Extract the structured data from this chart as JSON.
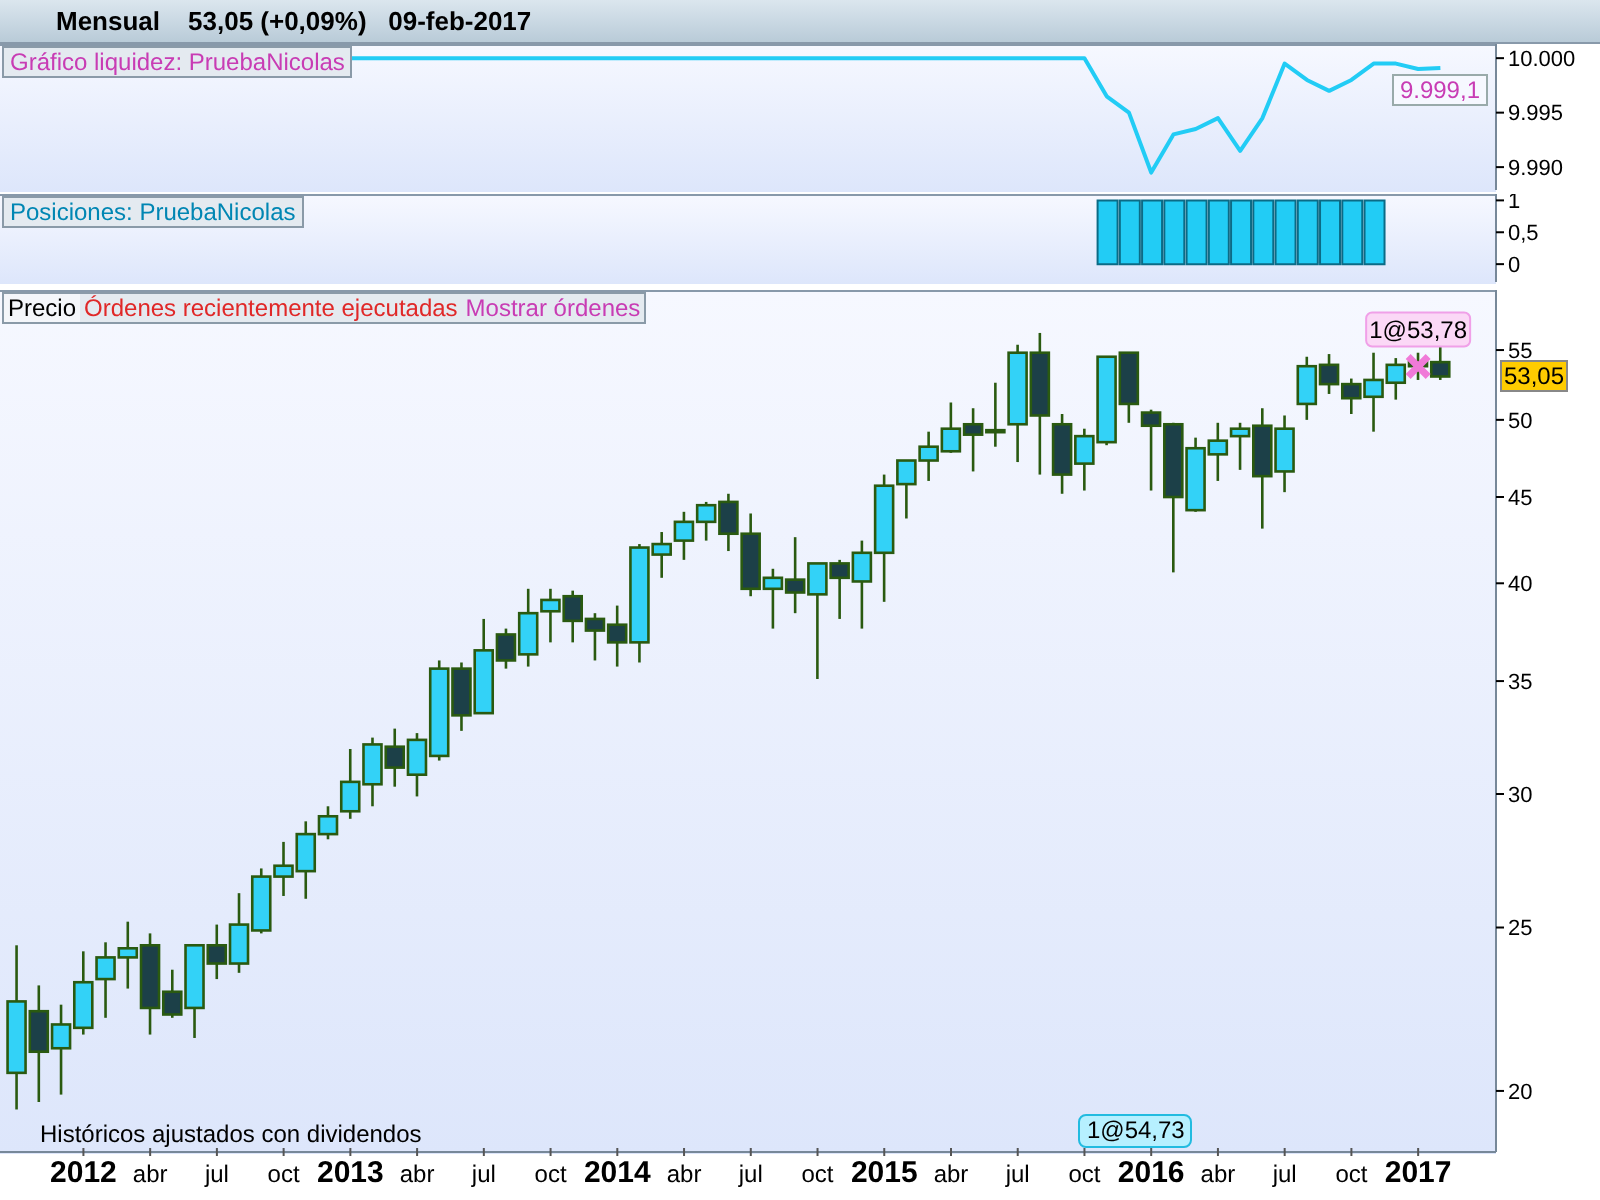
{
  "chart_data": [
    {
      "type": "line",
      "title": "Mensual",
      "subtitle": "53,05 (+0,09%)   09-feb-2017",
      "tick_labels": "y",
      "categories": [
        null,
        null,
        null,
        null,
        null,
        null,
        null,
        null,
        null,
        null,
        null,
        null,
        null,
        null,
        null,
        null,
        null,
        null,
        null,
        null,
        null,
        null,
        null,
        null,
        null,
        null,
        null,
        null,
        null,
        null,
        null,
        null,
        null,
        null,
        null,
        null,
        null,
        null,
        null,
        null,
        null,
        null,
        null,
        null,
        null,
        null,
        null,
        null,
        null,
        null,
        null,
        null,
        null,
        null,
        null,
        null,
        null,
        null,
        null,
        null,
        null,
        null,
        null,
        null,
        null
      ],
      "series": [
        {
          "color": "#22ccf5",
          "values": [
            null,
            null,
            null,
            null,
            null,
            null,
            null,
            null,
            null,
            null,
            null,
            null,
            null,
            null,
            null,
            10000,
            10000,
            10000,
            10000,
            10000,
            10000,
            10000,
            10000,
            10000,
            10000,
            10000,
            10000,
            10000,
            10000,
            10000,
            10000,
            10000,
            10000,
            10000,
            10000,
            10000,
            10000,
            10000,
            10000,
            10000,
            10000,
            10000,
            10000,
            10000,
            10000,
            10000,
            10000,
            10000,
            10000,
            9996.5,
            9995,
            9989.5,
            9993,
            9993.5,
            9994.5,
            9991.5,
            9994.5,
            9999.5,
            9998,
            9997,
            9998,
            9999.5,
            9999.5,
            9999,
            9999.1
          ]
        }
      ],
      "ylim": [
        9987.9,
        10001.3
      ],
      "yticks": [
        {
          "value": 9990,
          "label": "9.990"
        },
        {
          "value": 9995,
          "label": "9.995"
        },
        {
          "value": 10000,
          "label": "10.000"
        }
      ],
      "annotations": [
        "Gráfico liquidez: PruebaNicolas",
        "9.999,1"
      ]
    },
    {
      "type": "bar",
      "title": "Posiciones: PruebaNicolas",
      "tick_labels": "y",
      "categories": [
        null,
        null,
        null,
        null,
        null,
        null,
        null,
        null,
        null,
        null,
        null,
        null,
        null,
        null,
        null,
        null,
        null,
        null,
        null,
        null,
        null,
        null,
        null,
        null,
        null,
        null,
        null,
        null,
        null,
        null,
        null,
        null,
        null,
        null,
        null,
        null,
        null,
        null,
        null,
        null,
        null,
        null,
        null,
        null,
        null,
        null,
        null,
        null,
        null,
        null,
        null,
        null,
        null,
        null,
        null,
        null,
        null,
        null,
        null,
        null,
        null,
        null,
        null,
        null,
        null
      ],
      "values": [
        0,
        0,
        0,
        0,
        0,
        0,
        0,
        0,
        0,
        0,
        0,
        0,
        0,
        0,
        0,
        0,
        0,
        0,
        0,
        0,
        0,
        0,
        0,
        0,
        0,
        0,
        0,
        0,
        0,
        0,
        0,
        0,
        0,
        0,
        0,
        0,
        0,
        0,
        0,
        0,
        0,
        0,
        0,
        0,
        0,
        0,
        0,
        0,
        0,
        1,
        1,
        1,
        1,
        1,
        1,
        1,
        1,
        1,
        1,
        1,
        1,
        1,
        0,
        0,
        0
      ],
      "color": "#22ccf5",
      "ylim": [
        -0.28,
        1.1
      ],
      "yticks": [
        0,
        {
          "value": 0.5,
          "label": "0,5"
        },
        1
      ]
    },
    {
      "type": "candlestick",
      "log": true,
      "categories": [
        null,
        null,
        null,
        "2012",
        null,
        null,
        "abr",
        null,
        null,
        "jul",
        null,
        null,
        "oct",
        null,
        null,
        "2013",
        null,
        null,
        "abr",
        null,
        null,
        "jul",
        null,
        null,
        "oct",
        null,
        null,
        "2014",
        null,
        null,
        "abr",
        null,
        null,
        "jul",
        null,
        null,
        "oct",
        null,
        null,
        "2015",
        null,
        null,
        "abr",
        null,
        null,
        "jul",
        null,
        null,
        "oct",
        null,
        null,
        "2016",
        null,
        null,
        "abr",
        null,
        null,
        "jul",
        null,
        null,
        "oct",
        null,
        null,
        "2017",
        null
      ],
      "ohlc": [
        [
          20.5,
          24.4,
          19.5,
          22.6
        ],
        [
          22.3,
          23.1,
          19.7,
          21.1
        ],
        [
          21.2,
          22.5,
          19.9,
          21.9
        ],
        [
          21.8,
          24.2,
          21.6,
          23.2
        ],
        [
          23.3,
          24.5,
          22.1,
          24.0
        ],
        [
          24.0,
          25.2,
          23.0,
          24.3
        ],
        [
          24.4,
          24.8,
          21.6,
          22.4
        ],
        [
          22.9,
          23.6,
          22.1,
          22.2
        ],
        [
          22.4,
          24.4,
          21.5,
          24.4
        ],
        [
          24.4,
          25.1,
          23.3,
          23.8
        ],
        [
          23.8,
          26.2,
          23.5,
          25.1
        ],
        [
          24.9,
          27.1,
          24.8,
          26.8
        ],
        [
          26.8,
          28.1,
          26.1,
          27.2
        ],
        [
          27.0,
          28.9,
          26.0,
          28.4
        ],
        [
          28.4,
          29.5,
          28.2,
          29.1
        ],
        [
          29.3,
          31.9,
          29.0,
          30.5
        ],
        [
          30.4,
          32.4,
          29.5,
          32.1
        ],
        [
          32.0,
          32.8,
          30.3,
          31.1
        ],
        [
          30.8,
          32.6,
          29.9,
          32.3
        ],
        [
          31.6,
          36.0,
          31.4,
          35.6
        ],
        [
          35.6,
          35.9,
          32.7,
          33.4
        ],
        [
          33.5,
          38.1,
          33.5,
          36.5
        ],
        [
          37.3,
          37.6,
          35.6,
          36.0
        ],
        [
          36.3,
          39.7,
          35.7,
          38.4
        ],
        [
          38.5,
          39.7,
          36.9,
          39.1
        ],
        [
          39.3,
          39.6,
          36.9,
          38.0
        ],
        [
          38.1,
          38.4,
          36.0,
          37.5
        ],
        [
          37.8,
          38.8,
          35.7,
          36.9
        ],
        [
          36.9,
          42.2,
          35.9,
          42.0
        ],
        [
          41.6,
          42.9,
          40.3,
          42.2
        ],
        [
          42.4,
          44.1,
          41.3,
          43.5
        ],
        [
          43.5,
          44.7,
          42.4,
          44.5
        ],
        [
          44.7,
          45.2,
          41.8,
          42.8
        ],
        [
          42.8,
          44.0,
          39.3,
          39.7
        ],
        [
          39.7,
          40.8,
          37.6,
          40.3
        ],
        [
          40.2,
          42.6,
          38.4,
          39.5
        ],
        [
          39.4,
          41.1,
          35.1,
          41.1
        ],
        [
          41.1,
          41.3,
          38.1,
          40.3
        ],
        [
          40.1,
          42.4,
          37.6,
          41.7
        ],
        [
          41.7,
          46.4,
          39.0,
          45.7
        ],
        [
          45.8,
          47.3,
          43.7,
          47.3
        ],
        [
          47.3,
          49.2,
          46.0,
          48.2
        ],
        [
          47.9,
          51.2,
          47.8,
          49.4
        ],
        [
          49.7,
          50.8,
          46.6,
          49.0
        ],
        [
          49.3,
          52.6,
          48.2,
          49.3
        ],
        [
          49.7,
          55.4,
          47.2,
          54.8
        ],
        [
          54.8,
          56.3,
          46.4,
          50.3
        ],
        [
          49.7,
          50.4,
          45.2,
          46.4
        ],
        [
          47.1,
          49.4,
          45.4,
          48.9
        ],
        [
          48.5,
          54.5,
          48.3,
          54.5
        ],
        [
          54.8,
          54.8,
          49.8,
          51.1
        ],
        [
          50.5,
          50.7,
          45.4,
          49.6
        ],
        [
          49.7,
          49.8,
          40.6,
          45.0
        ],
        [
          44.2,
          48.8,
          44.1,
          48.1
        ],
        [
          47.7,
          49.8,
          46.0,
          48.6
        ],
        [
          48.9,
          49.8,
          46.7,
          49.4
        ],
        [
          49.6,
          50.8,
          43.1,
          46.3
        ],
        [
          46.6,
          50.3,
          45.3,
          49.4
        ],
        [
          51.1,
          54.5,
          50.0,
          53.8
        ],
        [
          53.9,
          54.7,
          51.8,
          52.5
        ],
        [
          52.5,
          52.9,
          50.4,
          51.5
        ],
        [
          51.6,
          54.8,
          49.2,
          52.8
        ],
        [
          52.6,
          54.4,
          51.4,
          53.9
        ],
        [
          54.1,
          54.8,
          52.8,
          53.8
        ],
        [
          54.1,
          55.3,
          52.8,
          53.05
        ]
      ],
      "ylim": [
        18.4,
        59.7
      ],
      "yticks": [
        20,
        25,
        30,
        35,
        40,
        45,
        50,
        55
      ],
      "annotations": [
        "Precio",
        "Órdenes recientemente ejecutadas",
        "Mostrar órdenes",
        {
          "text": "1@53,78",
          "x": "2017",
          "y": 53.78
        },
        "53,05",
        "1@54,73",
        "Históricos ajustados con dividendos"
      ]
    }
  ]
}
